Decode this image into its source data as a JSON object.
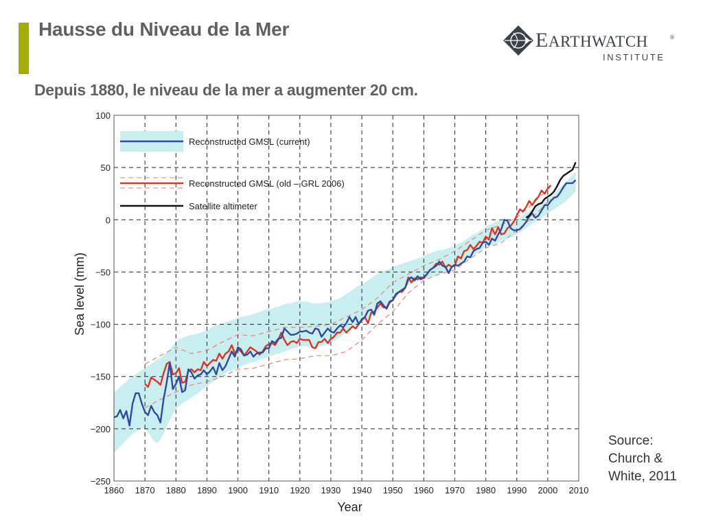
{
  "header": {
    "title": "Hausse du Niveau de la Mer",
    "subtitle": "Depuis 1880, le niveau de la mer a augmenter 20 cm.",
    "accent_color": "#a3ad00"
  },
  "logo": {
    "icon": "compass-diamond-icon",
    "word_first": "E",
    "word_rest": "ARTHWATCH",
    "registered": "®",
    "sub": "INSTITUTE"
  },
  "source": {
    "line1": "Source:",
    "line2": "Church &",
    "line3": "White, 2011"
  },
  "chart_data": {
    "type": "line",
    "title": "",
    "xlabel": "Year",
    "ylabel": "Sea level (mm)",
    "xlim": [
      1860,
      2010
    ],
    "ylim": [
      -250,
      100
    ],
    "grid": true,
    "x_ticks": [
      "1860",
      "1870",
      "1880",
      "1890",
      "1900",
      "1910",
      "1920",
      "1930",
      "1940",
      "1950",
      "1960",
      "1970",
      "1980",
      "1990",
      "2000",
      "2010"
    ],
    "x_tick_values": [
      1860,
      1870,
      1880,
      1890,
      1900,
      1910,
      1920,
      1930,
      1940,
      1950,
      1960,
      1970,
      1980,
      1990,
      2000,
      2010
    ],
    "y_ticks": [
      "100",
      "50",
      "0",
      "−50",
      "−100",
      "−150",
      "−200",
      "−250"
    ],
    "y_tick_values": [
      100,
      50,
      0,
      -50,
      -100,
      -150,
      -200,
      -250
    ],
    "legend_position": "top-left",
    "legend": [
      {
        "label": "Reconstructed GMSL (current)",
        "color": "#2e4aa0",
        "band_color": "#c9eef0"
      },
      {
        "label": "Reconstructed GMSL (old – GRL 2006)",
        "color": "#dd3322",
        "band_color": "#e87a6c"
      },
      {
        "label": "Satellite altimeter",
        "color": "#111111"
      }
    ],
    "series": [
      {
        "name": "Reconstructed GMSL (current)",
        "color": "#2e4aa0",
        "x": [
          1860,
          1861,
          1862,
          1863,
          1864,
          1865,
          1866,
          1867,
          1868,
          1869,
          1870,
          1871,
          1872,
          1873,
          1874,
          1875,
          1876,
          1877,
          1878,
          1879,
          1880,
          1881,
          1882,
          1883,
          1884,
          1885,
          1886,
          1887,
          1888,
          1889,
          1890,
          1891,
          1892,
          1893,
          1894,
          1895,
          1896,
          1897,
          1898,
          1899,
          1900,
          1901,
          1902,
          1903,
          1904,
          1905,
          1906,
          1907,
          1908,
          1909,
          1910,
          1911,
          1912,
          1913,
          1914,
          1915,
          1916,
          1917,
          1918,
          1919,
          1920,
          1921,
          1922,
          1923,
          1924,
          1925,
          1926,
          1927,
          1928,
          1929,
          1930,
          1931,
          1932,
          1933,
          1934,
          1935,
          1936,
          1937,
          1938,
          1939,
          1940,
          1941,
          1942,
          1943,
          1944,
          1945,
          1946,
          1947,
          1948,
          1949,
          1950,
          1951,
          1952,
          1953,
          1954,
          1955,
          1956,
          1957,
          1958,
          1959,
          1960,
          1961,
          1962,
          1963,
          1964,
          1965,
          1966,
          1967,
          1968,
          1969,
          1970,
          1971,
          1972,
          1973,
          1974,
          1975,
          1976,
          1977,
          1978,
          1979,
          1980,
          1981,
          1982,
          1983,
          1984,
          1985,
          1986,
          1987,
          1988,
          1989,
          1990,
          1991,
          1992,
          1993,
          1994,
          1995,
          1996,
          1997,
          1998,
          1999,
          2000,
          2001,
          2002,
          2003,
          2004,
          2005,
          2006,
          2007,
          2008,
          2009
        ],
        "values": [
          -189,
          -188,
          -182,
          -190,
          -183,
          -197,
          -176,
          -166,
          -166,
          -176,
          -184,
          -187,
          -178,
          -184,
          -187,
          -194,
          -172,
          -156,
          -137,
          -162,
          -157,
          -150,
          -165,
          -163,
          -143,
          -146,
          -152,
          -149,
          -148,
          -144,
          -148,
          -145,
          -141,
          -148,
          -137,
          -144,
          -140,
          -133,
          -126,
          -131,
          -122,
          -124,
          -130,
          -129,
          -126,
          -131,
          -128,
          -127,
          -127,
          -123,
          -123,
          -116,
          -118,
          -114,
          -113,
          -104,
          -107,
          -110,
          -110,
          -109,
          -107,
          -107,
          -106,
          -108,
          -109,
          -104,
          -105,
          -112,
          -108,
          -104,
          -107,
          -108,
          -104,
          -101,
          -103,
          -99,
          -93,
          -98,
          -93,
          -100,
          -95,
          -93,
          -87,
          -86,
          -91,
          -80,
          -78,
          -82,
          -85,
          -79,
          -77,
          -71,
          -69,
          -67,
          -65,
          -57,
          -55,
          -58,
          -54,
          -57,
          -55,
          -52,
          -48,
          -46,
          -44,
          -40,
          -44,
          -45,
          -51,
          -45,
          -43,
          -44,
          -42,
          -40,
          -35,
          -36,
          -30,
          -28,
          -27,
          -22,
          -21,
          -24,
          -18,
          -20,
          -14,
          -9,
          0,
          -1,
          -8,
          -10,
          -10,
          -9,
          -6,
          -2,
          3,
          6,
          2,
          4,
          9,
          14,
          14,
          18,
          21,
          22,
          26,
          31,
          35,
          35,
          35,
          38
        ],
        "band_upper": [
          -165,
          -163,
          -160,
          -157,
          -155,
          -152,
          -150,
          -148,
          -146,
          -144,
          -142,
          -140,
          -138,
          -136,
          -134,
          -132,
          -130,
          -127,
          -124,
          -120,
          -117,
          -115,
          -113,
          -112,
          -111,
          -110,
          -110,
          -109,
          -108,
          -107,
          -106,
          -104,
          -102,
          -101,
          -100,
          -99,
          -98,
          -97,
          -96,
          -95,
          -94,
          -93,
          -92,
          -92,
          -91,
          -90,
          -89,
          -88,
          -87,
          -86,
          -86,
          -85,
          -84,
          -83,
          -82,
          -81,
          -80,
          -80,
          -79,
          -78,
          -78,
          -78,
          -78,
          -79,
          -80,
          -80,
          -80,
          -80,
          -79,
          -79,
          -78,
          -77,
          -76,
          -75,
          -73,
          -71,
          -69,
          -67,
          -65,
          -63,
          -62,
          -60,
          -58,
          -56,
          -54,
          -52,
          -50,
          -49,
          -48,
          -47,
          -45,
          -44,
          -43,
          -42,
          -41,
          -40,
          -39,
          -38,
          -37,
          -36,
          -35,
          -33,
          -32,
          -31,
          -30,
          -29,
          -29,
          -28,
          -27,
          -26,
          -25,
          -23,
          -22,
          -20,
          -18,
          -16,
          -14,
          -13,
          -11,
          -9,
          -7,
          -5,
          -4,
          -2,
          -1,
          0,
          -1,
          -2,
          -2,
          -1,
          0,
          2,
          4,
          6,
          8,
          10,
          12,
          14,
          16,
          18,
          20,
          22,
          25,
          28,
          31,
          34,
          37,
          40,
          43,
          46
        ],
        "band_lower": [
          -223,
          -220,
          -217,
          -214,
          -211,
          -208,
          -205,
          -203,
          -201,
          -199,
          -200,
          -203,
          -208,
          -212,
          -214,
          -210,
          -205,
          -198,
          -192,
          -186,
          -181,
          -178,
          -176,
          -174,
          -172,
          -170,
          -168,
          -166,
          -164,
          -161,
          -159,
          -157,
          -155,
          -153,
          -151,
          -149,
          -147,
          -145,
          -144,
          -143,
          -141,
          -140,
          -139,
          -138,
          -137,
          -136,
          -135,
          -134,
          -133,
          -132,
          -131,
          -130,
          -129,
          -128,
          -127,
          -126,
          -125,
          -124,
          -123,
          -122,
          -121,
          -121,
          -121,
          -122,
          -122,
          -122,
          -122,
          -121,
          -120,
          -119,
          -118,
          -116,
          -114,
          -112,
          -110,
          -108,
          -106,
          -104,
          -102,
          -100,
          -98,
          -96,
          -94,
          -92,
          -90,
          -88,
          -86,
          -84,
          -82,
          -80,
          -77,
          -74,
          -71,
          -68,
          -65,
          -62,
          -61,
          -60,
          -59,
          -58,
          -57,
          -56,
          -55,
          -54,
          -53,
          -52,
          -51,
          -50,
          -49,
          -48,
          -46,
          -44,
          -42,
          -40,
          -38,
          -36,
          -34,
          -32,
          -30,
          -28,
          -26,
          -25,
          -24,
          -23,
          -22,
          -20,
          -19,
          -18,
          -17,
          -16,
          -14,
          -12,
          -10,
          -8,
          -6,
          -4,
          -2,
          0,
          2,
          4,
          6,
          8,
          10,
          12,
          14,
          16,
          18,
          21,
          24,
          27
        ]
      },
      {
        "name": "Reconstructed GMSL (old – GRL 2006)",
        "color": "#dd3322",
        "x": [
          1870,
          1871,
          1872,
          1873,
          1874,
          1875,
          1876,
          1877,
          1878,
          1879,
          1880,
          1881,
          1882,
          1883,
          1884,
          1885,
          1886,
          1887,
          1888,
          1889,
          1890,
          1891,
          1892,
          1893,
          1894,
          1895,
          1896,
          1897,
          1898,
          1899,
          1900,
          1901,
          1902,
          1903,
          1904,
          1905,
          1906,
          1907,
          1908,
          1909,
          1910,
          1911,
          1912,
          1913,
          1914,
          1915,
          1916,
          1917,
          1918,
          1919,
          1920,
          1921,
          1922,
          1923,
          1924,
          1925,
          1926,
          1927,
          1928,
          1929,
          1930,
          1931,
          1932,
          1933,
          1934,
          1935,
          1936,
          1937,
          1938,
          1939,
          1940,
          1941,
          1942,
          1943,
          1944,
          1945,
          1946,
          1947,
          1948,
          1949,
          1950,
          1951,
          1952,
          1953,
          1954,
          1955,
          1956,
          1957,
          1958,
          1959,
          1960,
          1961,
          1962,
          1963,
          1964,
          1965,
          1966,
          1967,
          1968,
          1969,
          1970,
          1971,
          1972,
          1973,
          1974,
          1975,
          1976,
          1977,
          1978,
          1979,
          1980,
          1981,
          1982,
          1983,
          1984,
          1985,
          1986,
          1987,
          1988,
          1989,
          1990,
          1991,
          1992,
          1993,
          1994,
          1995,
          1996,
          1997,
          1998,
          1999,
          2000,
          2001
        ],
        "values": [
          -157,
          -160,
          -151,
          -153,
          -155,
          -158,
          -147,
          -138,
          -136,
          -148,
          -147,
          -142,
          -156,
          -155,
          -145,
          -143,
          -146,
          -143,
          -144,
          -136,
          -140,
          -137,
          -134,
          -135,
          -128,
          -133,
          -128,
          -126,
          -120,
          -128,
          -124,
          -126,
          -130,
          -126,
          -122,
          -124,
          -126,
          -129,
          -126,
          -121,
          -119,
          -118,
          -120,
          -115,
          -108,
          -115,
          -120,
          -117,
          -116,
          -118,
          -114,
          -115,
          -115,
          -115,
          -122,
          -123,
          -117,
          -117,
          -114,
          -118,
          -114,
          -112,
          -108,
          -108,
          -104,
          -108,
          -105,
          -102,
          -104,
          -100,
          -96,
          -93,
          -99,
          -89,
          -88,
          -84,
          -80,
          -84,
          -84,
          -78,
          -77,
          -72,
          -69,
          -69,
          -65,
          -55,
          -60,
          -56,
          -57,
          -55,
          -56,
          -52,
          -48,
          -46,
          -42,
          -43,
          -40,
          -46,
          -43,
          -45,
          -44,
          -35,
          -37,
          -30,
          -29,
          -24,
          -28,
          -25,
          -21,
          -22,
          -16,
          -19,
          -8,
          -14,
          -7,
          -14,
          -13,
          -8,
          -6,
          -2,
          4,
          10,
          8,
          12,
          18,
          14,
          19,
          22,
          28,
          25,
          30,
          33
        ]
      },
      {
        "name": "Satellite altimeter",
        "color": "#111111",
        "x": [
          1993,
          1994,
          1995,
          1996,
          1997,
          1998,
          1999,
          2000,
          2001,
          2002,
          2003,
          2004,
          2005,
          2006,
          2007,
          2008,
          2009
        ],
        "values": [
          2,
          4,
          8,
          13,
          15,
          16,
          20,
          22,
          24,
          27,
          32,
          38,
          42,
          44,
          46,
          48,
          55
        ]
      }
    ],
    "old_band": {
      "name": "Reconstructed GMSL (old – GRL 2006) uncertainty",
      "x": [
        1870,
        1875,
        1880,
        1885,
        1890,
        1895,
        1900,
        1905,
        1910,
        1915,
        1920,
        1925,
        1930,
        1935,
        1940,
        1945,
        1950,
        1955,
        1960,
        1965,
        1970,
        1975,
        1980,
        1985,
        1990,
        1995,
        2001
      ],
      "upper": [
        -138,
        -130,
        -122,
        -128,
        -125,
        -117,
        -110,
        -111,
        -107,
        -103,
        -103,
        -102,
        -100,
        -93,
        -86,
        -75,
        -60,
        -52,
        -44,
        -38,
        -30,
        -20,
        -10,
        -5,
        2,
        15,
        32
      ],
      "lower": [
        -180,
        -172,
        -165,
        -158,
        -155,
        -150,
        -143,
        -142,
        -138,
        -134,
        -133,
        -130,
        -130,
        -126,
        -115,
        -100,
        -88,
        -70,
        -58,
        -52,
        -48,
        -37,
        -27,
        -22,
        -10,
        2,
        20
      ]
    }
  }
}
